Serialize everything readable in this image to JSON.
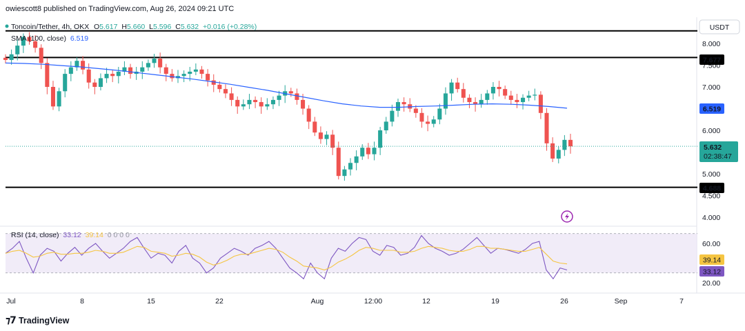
{
  "header": {
    "publisher_line": "owiescott8 published on TradingView.com, Aug 26, 2024 09:21 UTC"
  },
  "symbol_legend": {
    "name": "Toncoin/Tether, 4h, OKX",
    "o_label": "O",
    "o_value": "5.617",
    "h_label": "H",
    "h_value": "5.660",
    "l_label": "L",
    "l_value": "5.596",
    "c_label": "C",
    "c_value": "5.632",
    "change": "+0.016 (+0.28%)"
  },
  "sma_legend": {
    "label": "SMA (100, close)",
    "value": "6.519"
  },
  "rsi_legend": {
    "label": "RSI (14, close)",
    "value1": "33.12",
    "value2": "39.14",
    "zeros": "0  0  0  0"
  },
  "currency_button": "USDT",
  "price_axis": {
    "ticks": [
      "8.000",
      "7.500",
      "7.000",
      "6.000",
      "5.000",
      "4.500",
      "4.000"
    ]
  },
  "rsi_axis": {
    "ticks": [
      "60.00",
      "20.00"
    ]
  },
  "time_axis": {
    "ticks": [
      "Jul",
      "8",
      "15",
      "22",
      "Aug",
      "12:00",
      "12",
      "19",
      "26",
      "Sep",
      "7"
    ]
  },
  "badges": {
    "res_line": "7.677",
    "sup_line": "4.688",
    "sma_badge": "6.519",
    "price_badge": "5.632",
    "countdown": "02:38:47",
    "rsi_ma_badge": "39.14",
    "rsi_badge": "33.12"
  },
  "colors": {
    "up": "#26a69a",
    "down": "#ef5350",
    "sma": "#2962ff",
    "rsi": "#7e57c2",
    "rsi_ma": "#f5c542",
    "rsi_band": "#ede7f6",
    "line": "#000000"
  },
  "footer": {
    "brand": "TradingView"
  },
  "chart_data": {
    "type": "candlestick",
    "title": "Toncoin/Tether, 4h, OKX",
    "price_range": [
      3.75,
      8.45
    ],
    "horizontal_lines": [
      8.29,
      7.677,
      4.688
    ],
    "closes": [
      7.62,
      7.75,
      7.95,
      8.15,
      8.05,
      7.9,
      7.55,
      7.0,
      6.55,
      6.9,
      7.3,
      7.45,
      7.6,
      7.4,
      7.1,
      7.0,
      7.2,
      7.3,
      7.25,
      7.35,
      7.45,
      7.3,
      7.35,
      7.45,
      7.55,
      7.65,
      7.45,
      7.3,
      7.2,
      7.25,
      7.3,
      7.35,
      7.4,
      7.3,
      7.15,
      7.05,
      6.95,
      6.85,
      6.7,
      6.55,
      6.6,
      6.7,
      6.65,
      6.55,
      6.6,
      6.7,
      6.8,
      6.9,
      6.85,
      6.7,
      6.5,
      6.2,
      5.95,
      5.8,
      5.9,
      5.6,
      4.95,
      5.1,
      5.25,
      5.4,
      5.6,
      5.45,
      5.6,
      6.0,
      6.2,
      6.45,
      6.65,
      6.6,
      6.5,
      6.4,
      6.2,
      6.15,
      6.25,
      6.5,
      6.85,
      7.1,
      6.95,
      6.75,
      6.65,
      6.6,
      6.7,
      6.85,
      7.0,
      6.95,
      6.8,
      6.7,
      6.65,
      6.75,
      6.8,
      6.82,
      6.4,
      5.7,
      5.35,
      5.55,
      5.78,
      5.632
    ],
    "sma_100": [
      7.55,
      7.54,
      7.52,
      7.49,
      7.46,
      7.42,
      7.38,
      7.33,
      7.28,
      7.23,
      7.18,
      7.12,
      7.06,
      6.99,
      6.92,
      6.84,
      6.76,
      6.68,
      6.61,
      6.56,
      6.53,
      6.53,
      6.55,
      6.56,
      6.58,
      6.6,
      6.61,
      6.6,
      6.58,
      6.55,
      6.51
    ],
    "rsi_series": [
      50,
      55,
      62,
      45,
      30,
      48,
      55,
      52,
      42,
      50,
      56,
      48,
      55,
      60,
      52,
      45,
      50,
      55,
      62,
      66,
      55,
      45,
      50,
      48,
      40,
      52,
      58,
      45,
      40,
      30,
      35,
      45,
      50,
      55,
      52,
      48,
      55,
      58,
      62,
      55,
      45,
      35,
      30,
      24,
      40,
      30,
      24,
      45,
      55,
      52,
      60,
      66,
      64,
      52,
      48,
      58,
      56,
      48,
      50,
      56,
      68,
      60,
      55,
      52,
      48,
      50,
      54,
      60,
      66,
      58,
      50,
      55,
      54,
      52,
      50,
      54,
      60,
      62,
      33,
      24,
      35,
      33
    ],
    "rsi_ma_series": [
      50,
      52,
      53,
      50,
      46,
      47,
      50,
      51,
      49,
      49,
      50,
      50,
      51,
      53,
      52,
      50,
      50,
      51,
      54,
      57,
      56,
      52,
      51,
      50,
      47,
      48,
      50,
      49,
      46,
      41,
      38,
      40,
      43,
      47,
      49,
      49,
      51,
      53,
      55,
      54,
      51,
      46,
      42,
      37,
      36,
      35,
      33,
      36,
      41,
      44,
      48,
      53,
      56,
      55,
      53,
      53,
      53,
      51,
      51,
      52,
      55,
      57,
      56,
      55,
      53,
      52,
      52,
      54,
      57,
      57,
      55,
      55,
      54,
      53,
      52,
      52,
      54,
      56,
      49,
      42,
      40,
      39.14
    ],
    "rsi_range": [
      10,
      80
    ],
    "rsi_band": [
      70,
      30
    ]
  }
}
